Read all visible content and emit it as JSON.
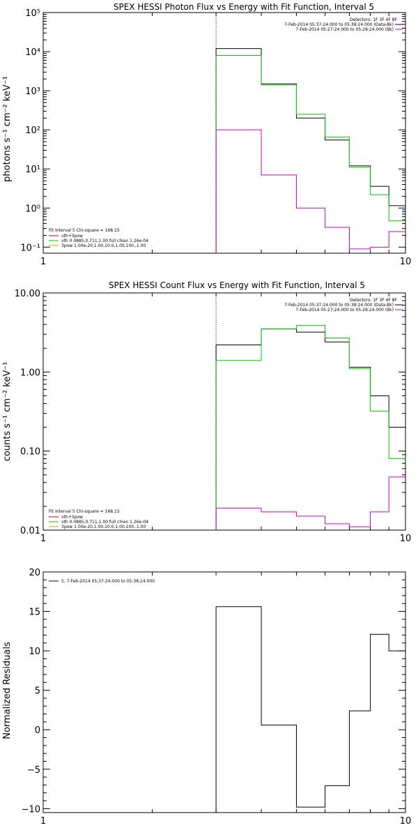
{
  "chart_data": [
    {
      "type": "line",
      "title": "SPEX HESSI Photon Flux vs Energy with Fit Function, Interval 5",
      "xlabel": "",
      "ylabel": "photons s⁻¹ cm⁻² keV⁻¹",
      "xscale": "log",
      "yscale": "log",
      "xlim": [
        1,
        10
      ],
      "ylim": [
        0.07,
        100000
      ],
      "x_tick_labels": [
        "1",
        "10"
      ],
      "y_tick_labels": [
        "10⁻¹",
        "10⁰",
        "10¹",
        "10²",
        "10³",
        "10⁴",
        "10⁵"
      ],
      "legend_top": [
        "Detectors: 1F 3F 4F 8F",
        "7-Feb-2014 05:37:24.000 to 05:38:24.000 (Data-Bk)",
        "7-Feb-2014 05:27:24.000 to 05:28:24.000 (Bk)"
      ],
      "legend_bottom": [
        "Fit Interval 5   Chi-square = 168.15",
        "vth+3pow",
        "vth 0.0885,0.711,1.00  full chian 1.26e-04",
        "3pow 1.00e-20,1.00,10.0,1.00,100.,1.00"
      ],
      "marker_x": 3,
      "bin_edges": [
        3,
        4,
        5,
        6,
        7,
        8,
        9,
        10
      ],
      "series": [
        {
          "name": "7-Feb-2014 05:37:24.000 to 05:38:24.000 (Data-Bk)",
          "color": "#000000",
          "values": [
            12000,
            1500,
            200,
            55,
            12,
            3.6,
            1.15
          ]
        },
        {
          "name": "vth+3pow",
          "color": "#00cc00",
          "values": [
            8000,
            1400,
            250,
            65,
            11,
            2.2,
            0.47
          ]
        },
        {
          "name": "7-Feb-2014 05:27:24.000 to 05:28:24.000 (Bk)",
          "color": "#cc00cc",
          "values": [
            100,
            7,
            1.0,
            0.32,
            0.09,
            0.1,
            0.25
          ]
        }
      ]
    },
    {
      "type": "line",
      "title": "SPEX HESSI Count Flux vs Energy with Fit Function, Interval 5",
      "xlabel": "",
      "ylabel": "counts s⁻¹ cm⁻² keV⁻¹",
      "xscale": "log",
      "yscale": "log",
      "xlim": [
        1,
        10
      ],
      "ylim": [
        0.01,
        10
      ],
      "x_tick_labels": [
        "1",
        "10"
      ],
      "y_tick_labels": [
        "0.01",
        "0.10",
        "1.00",
        "10.00"
      ],
      "legend_top": [
        "Detectors: 1F 3F 4F 8F",
        "7-Feb-2014 05:37:24.000 to 05:38:24.000 (Data-Bk)",
        "7-Feb-2014 05:27:24.000 to 05:28:24.000 (Bk)"
      ],
      "legend_bottom": [
        "Fit Interval 5   Chi-square = 168.15",
        "vth+3pow",
        "vth 0.0885,0.711,1.00  full chian 1.26e-04",
        "3pow 1.00e-20,1.00,10.0,1.00,100.,1.00"
      ],
      "marker_x": 3,
      "bin_edges": [
        3,
        4,
        5,
        6,
        7,
        8,
        9,
        10
      ],
      "series": [
        {
          "name": "7-Feb-2014 05:37:24.000 to 05:38:24.000 (Data-Bk)",
          "color": "#000000",
          "values": [
            2.2,
            3.5,
            3.2,
            2.4,
            1.15,
            0.5,
            0.2
          ]
        },
        {
          "name": "vth+3pow",
          "color": "#00cc00",
          "values": [
            1.4,
            3.5,
            3.9,
            2.7,
            1.1,
            0.32,
            0.08
          ]
        },
        {
          "name": "7-Feb-2014 05:27:24.000 to 05:28:24.000 (Bk)",
          "color": "#cc00cc",
          "values": [
            0.019,
            0.017,
            0.015,
            0.012,
            0.011,
            0.017,
            0.047
          ]
        }
      ]
    },
    {
      "type": "line",
      "title": "",
      "xlabel": "",
      "ylabel": "Normalized Residuals",
      "xscale": "log",
      "yscale": "linear",
      "xlim": [
        1,
        10
      ],
      "ylim": [
        -10.5,
        20
      ],
      "x_tick_labels": [
        "1",
        "10"
      ],
      "y_tick_labels": [
        "−10",
        "−5",
        "0",
        "5",
        "10",
        "15",
        "20"
      ],
      "legend_top": [
        "5.  7-Feb-2014 05:37:24.000 to 05:38:24.000"
      ],
      "bin_edges": [
        3,
        4,
        5,
        6,
        7,
        8,
        9,
        10
      ],
      "series": [
        {
          "name": "5.  7-Feb-2014 05:37:24.000 to 05:38:24.000",
          "color": "#000000",
          "values": [
            15.6,
            0.6,
            -9.8,
            -7.1,
            2.4,
            12.1,
            10.0
          ]
        }
      ]
    }
  ]
}
